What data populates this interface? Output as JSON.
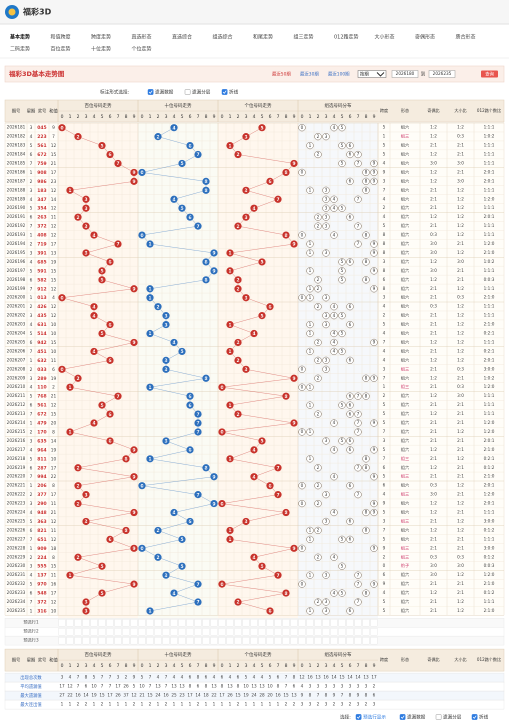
{
  "header": {
    "logo": "福彩3D"
  },
  "nav": [
    [
      "基本走势",
      "和值跨度",
      "跨度走势",
      "直选形态",
      "直选综合",
      "组选综合",
      "和尾走势",
      "组三走势",
      "012路走势",
      "大小形态",
      "奇偶形态",
      "质合形态"
    ],
    [
      "二码走势",
      "百位走势",
      "十位走势",
      "个位走势"
    ]
  ],
  "title": "福彩3D基本走势图",
  "period_links": [
    "最近50期",
    "最近30期",
    "最近100期"
  ],
  "select": "按期",
  "from": "2026180",
  "to_label": "到",
  "to": "2026235",
  "query": "查询",
  "options_label": "标注形式选择:",
  "options": [
    {
      "label": "遗漏数据",
      "checked": true
    },
    {
      "label": "遗漏分层",
      "checked": false
    },
    {
      "label": "折线",
      "checked": true
    }
  ],
  "columns": {
    "period": "期号",
    "week": "星期",
    "draw": "奖号",
    "sum": "和值",
    "groups": [
      "百位号码走势",
      "十位号码走势",
      "个位号码走势",
      "组选号码分布"
    ],
    "span": "跨度",
    "form": "形态",
    "oe": "奇偶比",
    "bs": "大小比",
    "r012": "012路个数比"
  },
  "digits": [
    0,
    1,
    2,
    3,
    4,
    5,
    6,
    7,
    8,
    9
  ],
  "rows": [
    [
      "2026181",
      3,
      "045",
      9,
      5,
      "组六",
      "1:2",
      "1:2",
      "1:1:1"
    ],
    [
      "2026182",
      4,
      "223",
      7,
      1,
      "组三",
      "1:2",
      "0:3",
      "1:0:2"
    ],
    [
      "2026183",
      5,
      "561",
      12,
      5,
      "组六",
      "2:1",
      "2:1",
      "1:1:1"
    ],
    [
      "2026184",
      6,
      "672",
      15,
      5,
      "组六",
      "1:2",
      "2:1",
      "1:1:1"
    ],
    [
      "2026185",
      7,
      "759",
      21,
      4,
      "组六",
      "3:0",
      "3:0",
      "1:1:1"
    ],
    [
      "2026186",
      1,
      "908",
      17,
      9,
      "组六",
      "1:2",
      "2:1",
      "2:0:1"
    ],
    [
      "2026187",
      2,
      "986",
      23,
      3,
      "组六",
      "1:2",
      "3:0",
      "2:0:1"
    ],
    [
      "2026188",
      3,
      "183",
      12,
      7,
      "组六",
      "2:1",
      "1:2",
      "1:1:1"
    ],
    [
      "2026189",
      4,
      "347",
      14,
      4,
      "组六",
      "2:1",
      "1:2",
      "1:2:0"
    ],
    [
      "2026190",
      5,
      "354",
      12,
      2,
      "组六",
      "2:1",
      "1:2",
      "1:1:1"
    ],
    [
      "2026191",
      6,
      "263",
      11,
      4,
      "组六",
      "1:2",
      "1:2",
      "2:0:1"
    ],
    [
      "2026192",
      7,
      "372",
      12,
      5,
      "组六",
      "2:1",
      "1:2",
      "1:1:1"
    ],
    [
      "2026193",
      1,
      "408",
      12,
      8,
      "组六",
      "0:3",
      "1:2",
      "1:1:1"
    ],
    [
      "2026194",
      2,
      "719",
      17,
      8,
      "组六",
      "3:0",
      "2:1",
      "1:2:0"
    ],
    [
      "2026195",
      3,
      "391",
      13,
      8,
      "组六",
      "3:0",
      "1:2",
      "2:1:0"
    ],
    [
      "2026196",
      4,
      "685",
      19,
      3,
      "组六",
      "1:2",
      "3:0",
      "1:0:2"
    ],
    [
      "2026197",
      5,
      "591",
      15,
      8,
      "组六",
      "3:0",
      "2:1",
      "1:1:1"
    ],
    [
      "2026198",
      6,
      "582",
      15,
      6,
      "组六",
      "1:2",
      "2:1",
      "0:0:3"
    ],
    [
      "2026199",
      7,
      "912",
      12,
      8,
      "组六",
      "2:1",
      "1:2",
      "1:1:1"
    ],
    [
      "2026200",
      1,
      "013",
      4,
      3,
      "组六",
      "2:1",
      "0:3",
      "2:1:0"
    ],
    [
      "2026201",
      2,
      "426",
      12,
      4,
      "组六",
      "0:3",
      "1:2",
      "1:1:1"
    ],
    [
      "2026202",
      3,
      "435",
      12,
      2,
      "组六",
      "2:1",
      "1:2",
      "1:1:1"
    ],
    [
      "2026203",
      4,
      "631",
      10,
      5,
      "组六",
      "2:1",
      "1:2",
      "2:1:0"
    ],
    [
      "2026204",
      5,
      "514",
      10,
      4,
      "组六",
      "2:1",
      "1:2",
      "0:2:1"
    ],
    [
      "2026205",
      6,
      "942",
      15,
      7,
      "组六",
      "1:2",
      "1:2",
      "1:1:1"
    ],
    [
      "2026206",
      7,
      "451",
      10,
      4,
      "组六",
      "2:1",
      "1:2",
      "0:2:1"
    ],
    [
      "2026207",
      1,
      "632",
      11,
      4,
      "组六",
      "1:2",
      "1:2",
      "2:0:1"
    ],
    [
      "2026208",
      2,
      "033",
      6,
      3,
      "组三",
      "2:1",
      "0:3",
      "3:0:0"
    ],
    [
      "2026209",
      3,
      "289",
      19,
      7,
      "组六",
      "1:2",
      "2:1",
      "1:0:2"
    ],
    [
      "2026210",
      4,
      "110",
      2,
      1,
      "组三",
      "2:1",
      "0:3",
      "1:2:0"
    ],
    [
      "2026211",
      5,
      "768",
      21,
      2,
      "组六",
      "1:2",
      "3:0",
      "1:1:1"
    ],
    [
      "2026212",
      6,
      "561",
      12,
      5,
      "组六",
      "2:1",
      "2:1",
      "1:1:1"
    ],
    [
      "2026213",
      7,
      "672",
      15,
      5,
      "组六",
      "1:2",
      "2:1",
      "1:1:1"
    ],
    [
      "2026214",
      1,
      "479",
      20,
      5,
      "组六",
      "2:1",
      "2:1",
      "1:2:0"
    ],
    [
      "2026215",
      2,
      "170",
      8,
      7,
      "组六",
      "2:1",
      "1:2",
      "1:2:0"
    ],
    [
      "2026216",
      3,
      "635",
      14,
      3,
      "组六",
      "2:1",
      "2:1",
      "2:0:1"
    ],
    [
      "2026217",
      4,
      "964",
      19,
      5,
      "组六",
      "1:2",
      "2:1",
      "2:1:0"
    ],
    [
      "2026218",
      5,
      "811",
      10,
      7,
      "组三",
      "2:1",
      "1:2",
      "0:2:1"
    ],
    [
      "2026219",
      6,
      "287",
      17,
      6,
      "组六",
      "1:2",
      "2:1",
      "0:1:2"
    ],
    [
      "2026220",
      7,
      "994",
      22,
      5,
      "组三",
      "2:1",
      "2:1",
      "2:1:0"
    ],
    [
      "2026221",
      1,
      "206",
      8,
      6,
      "组六",
      "0:3",
      "1:2",
      "2:0:1"
    ],
    [
      "2026222",
      2,
      "377",
      17,
      4,
      "组三",
      "3:0",
      "2:1",
      "1:2:0"
    ],
    [
      "2026223",
      3,
      "290",
      11,
      9,
      "组六",
      "1:2",
      "1:2",
      "2:0:1"
    ],
    [
      "2026224",
      4,
      "948",
      21,
      5,
      "组六",
      "1:2",
      "2:1",
      "1:1:1"
    ],
    [
      "2026225",
      5,
      "363",
      12,
      3,
      "组三",
      "2:1",
      "1:2",
      "3:0:0"
    ],
    [
      "2026226",
      6,
      "821",
      11,
      7,
      "组六",
      "1:2",
      "1:2",
      "0:1:2"
    ],
    [
      "2026227",
      7,
      "651",
      12,
      5,
      "组六",
      "2:1",
      "2:1",
      "1:1:1"
    ],
    [
      "2026228",
      1,
      "909",
      18,
      9,
      "组三",
      "2:1",
      "2:1",
      "3:0:0"
    ],
    [
      "2026229",
      2,
      "224",
      8,
      2,
      "组三",
      "0:3",
      "0:3",
      "0:1:2"
    ],
    [
      "2026230",
      3,
      "555",
      15,
      0,
      "豹子",
      "3:0",
      "3:0",
      "0:0:3"
    ],
    [
      "2026231",
      4,
      "137",
      11,
      6,
      "组六",
      "3:0",
      "1:2",
      "1:2:0"
    ],
    [
      "2026232",
      5,
      "970",
      16,
      9,
      "组六",
      "2:1",
      "2:1",
      "2:1:0"
    ],
    [
      "2026233",
      6,
      "548",
      17,
      4,
      "组六",
      "1:2",
      "2:1",
      "0:1:2"
    ],
    [
      "2026234",
      7,
      "372",
      12,
      5,
      "组六",
      "2:1",
      "1:2",
      "1:1:1"
    ],
    [
      "2026235",
      1,
      "316",
      10,
      5,
      "组六",
      "2:1",
      "1:2",
      "2:1:0"
    ]
  ],
  "preselect": [
    "预选行1",
    "预选行2",
    "预选行3"
  ],
  "stats": [
    {
      "label": "出现总次数",
      "values": [
        3,
        4,
        7,
        8,
        5,
        7,
        7,
        3,
        2,
        9,
        5,
        7,
        4,
        7,
        4,
        4,
        6,
        8,
        6,
        4,
        6,
        4,
        6,
        5,
        4,
        4,
        5,
        6,
        7,
        8,
        12,
        16,
        13,
        16,
        14,
        15,
        14,
        14,
        13,
        17
      ]
    },
    {
      "label": "平均遗漏值",
      "values": [
        17,
        12,
        7,
        6,
        10,
        7,
        7,
        17,
        26,
        5,
        10,
        7,
        13,
        7,
        13,
        13,
        8,
        6,
        8,
        13,
        8,
        13,
        8,
        10,
        13,
        13,
        10,
        8,
        7,
        6,
        4,
        3,
        3,
        3,
        3,
        3,
        3,
        3,
        3,
        2
      ]
    },
    {
      "label": "最大遗漏值",
      "values": [
        27,
        22,
        16,
        14,
        19,
        15,
        17,
        26,
        37,
        12,
        21,
        15,
        24,
        16,
        25,
        23,
        17,
        14,
        18,
        22,
        17,
        26,
        15,
        19,
        24,
        28,
        20,
        16,
        15,
        13,
        9,
        8,
        7,
        8,
        9,
        7,
        8,
        9,
        8,
        6
      ]
    },
    {
      "label": "最大连出值",
      "values": [
        1,
        1,
        2,
        2,
        1,
        2,
        1,
        1,
        1,
        2,
        1,
        2,
        1,
        2,
        1,
        1,
        1,
        2,
        1,
        1,
        1,
        1,
        2,
        1,
        1,
        1,
        1,
        1,
        2,
        2,
        3,
        3,
        2,
        3,
        2,
        3,
        2,
        3,
        2,
        3
      ]
    }
  ],
  "footer": {
    "label": "选择:",
    "options": [
      {
        "label": "预选行显示",
        "checked": true
      },
      {
        "label": "遗漏数据",
        "checked": true
      },
      {
        "label": "遗漏分层",
        "checked": false
      },
      {
        "label": "折线",
        "checked": true
      }
    ]
  }
}
